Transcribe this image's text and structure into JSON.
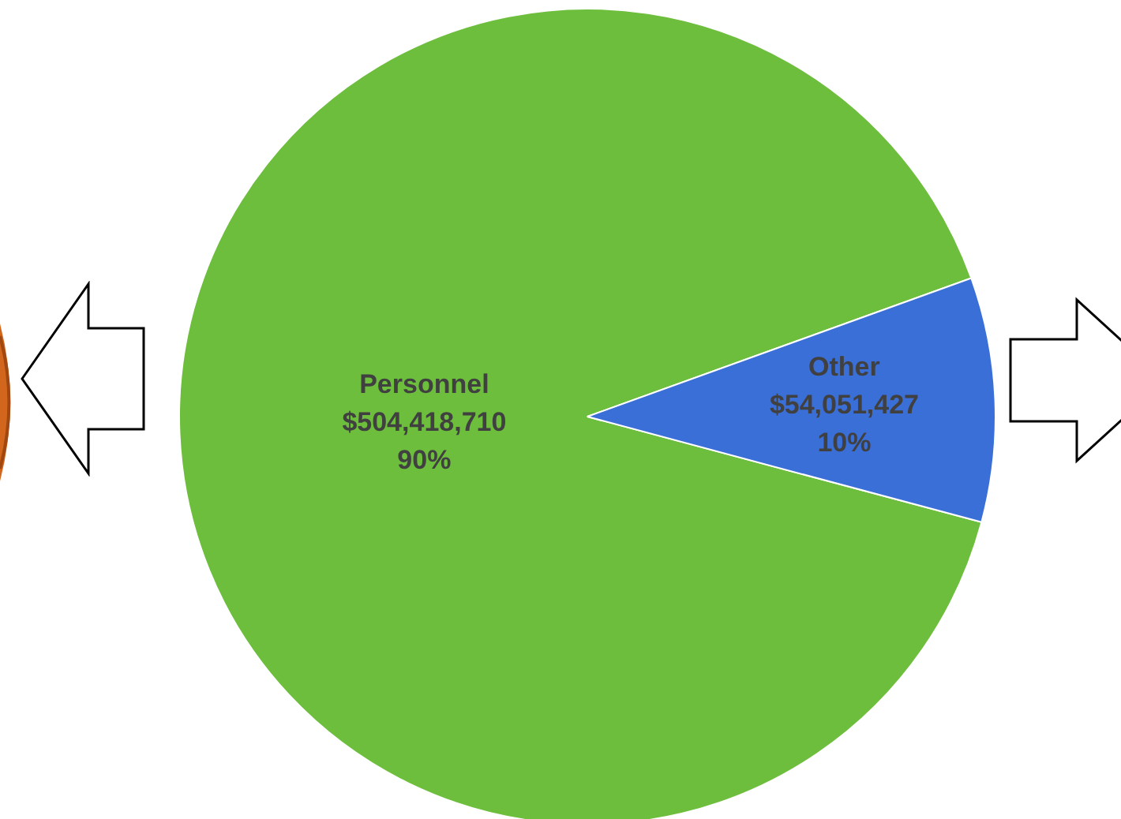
{
  "chart_data": {
    "type": "pie",
    "categories": [
      "Personnel",
      "Other"
    ],
    "values": [
      504418710,
      54051427
    ],
    "colors": [
      "#6dbe3c",
      "#3a6fd8"
    ],
    "value_labels": [
      "$504,418,710\n90%",
      "$54,051,427\n10%"
    ],
    "legend": false
  }
}
